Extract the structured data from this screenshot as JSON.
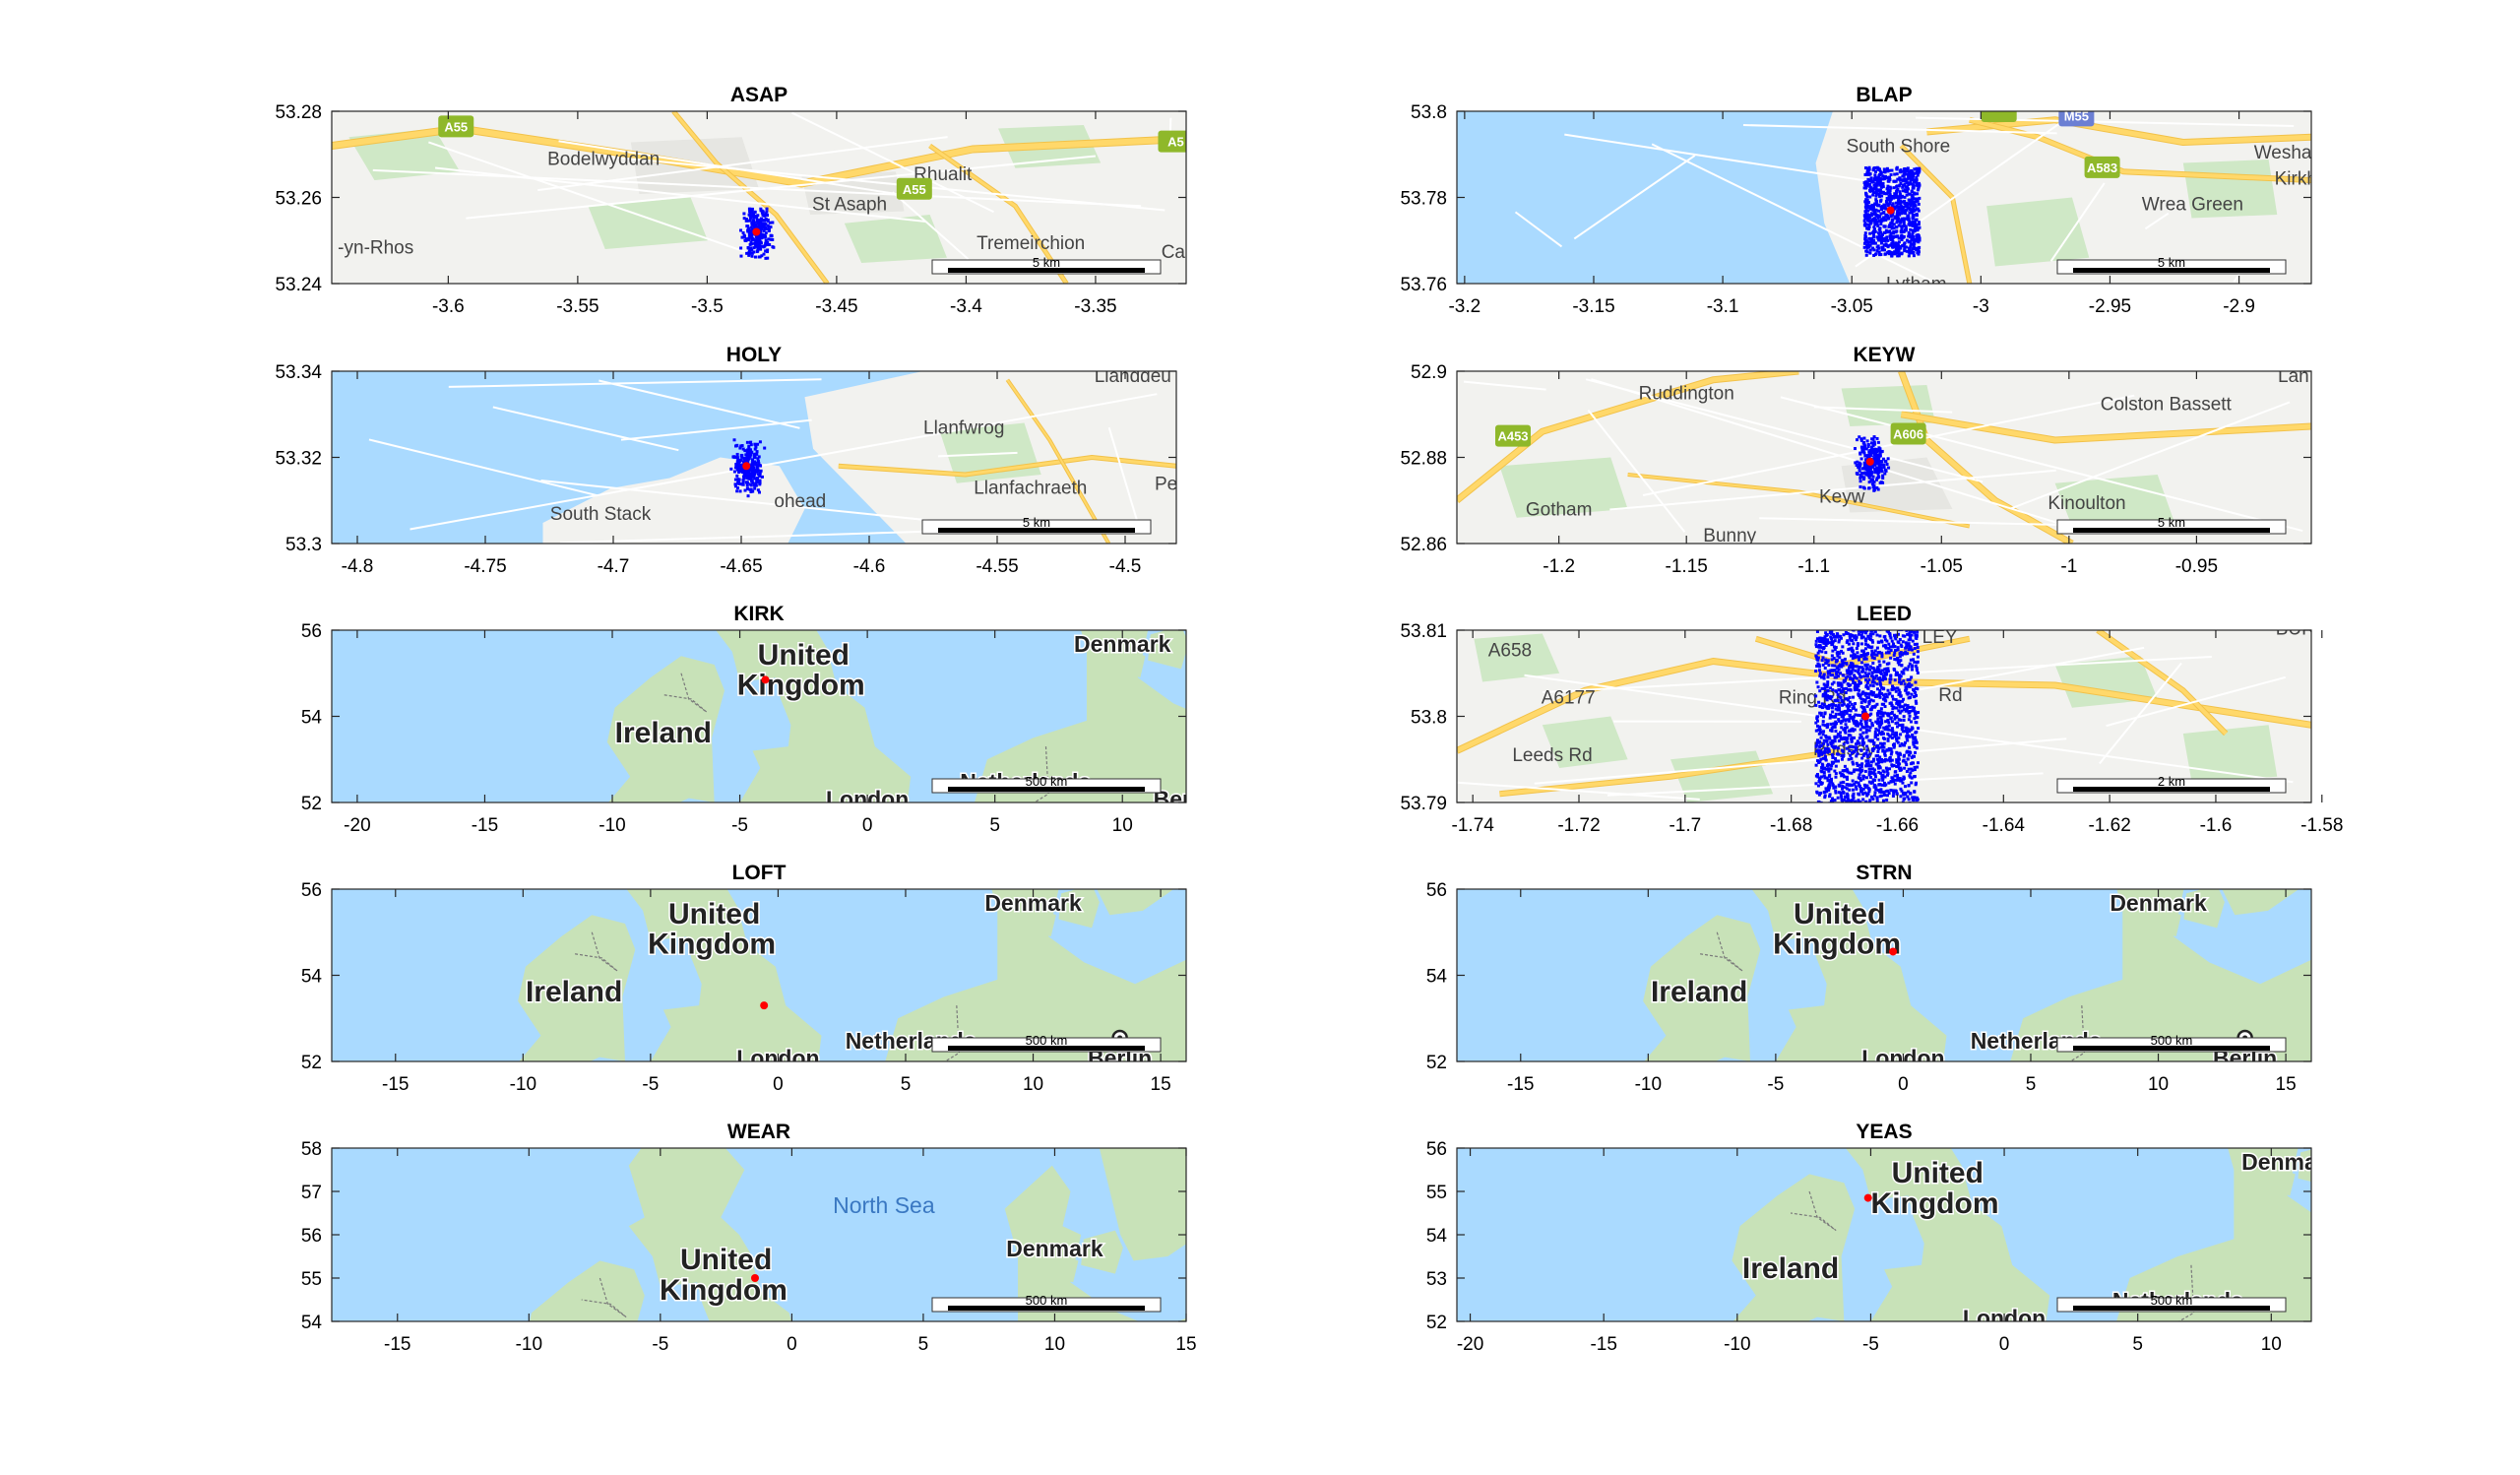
{
  "colors": {
    "water": "#aadaff",
    "land": "#f2f2ef",
    "green": "#cfe8c6",
    "landGreen": "#c8e2b8",
    "road": "#ffd86a",
    "roadEdge": "#f2c24a",
    "badge": "#8fb82a",
    "points": "#0000ff",
    "station": "#ff0000",
    "axis": "#262626"
  },
  "panels": [
    {
      "id": "asap",
      "title": "ASAP",
      "theme": "town",
      "xlim": [
        -3.645,
        -3.315
      ],
      "ylim": [
        53.24,
        53.28
      ],
      "xticks": [
        -3.6,
        -3.55,
        -3.5,
        -3.45,
        -3.4,
        -3.35
      ],
      "yticks": [
        53.24,
        53.26,
        53.28
      ],
      "xtick_labels": [
        "-3.6",
        "-3.55",
        "-3.5",
        "-3.45",
        "-3.4",
        "-3.35"
      ],
      "ytick_labels": [
        "53.24",
        "53.26",
        "53.28"
      ],
      "scale": "5 km",
      "station": [
        -3.481,
        53.252
      ],
      "places": [
        {
          "text": "Bodelwyddan",
          "lon": -3.54,
          "lat": 53.2675
        },
        {
          "text": "Rhualit",
          "lon": -3.409,
          "lat": 53.264
        },
        {
          "text": "St Asaph",
          "lon": -3.445,
          "lat": 53.257
        },
        {
          "text": "-yn-Rhos",
          "lon": -3.628,
          "lat": 53.247
        },
        {
          "text": "Tremeirchion",
          "lon": -3.375,
          "lat": 53.248
        },
        {
          "text": "Ca",
          "lon": -3.32,
          "lat": 53.246
        }
      ],
      "shields": [
        {
          "text": "A55",
          "lon": -3.597,
          "lat": 53.2765
        },
        {
          "text": "A55",
          "lon": -3.42,
          "lat": 53.262
        },
        {
          "text": "A5",
          "lon": -3.319,
          "lat": 53.273
        }
      ]
    },
    {
      "id": "blap",
      "title": "BLAP",
      "theme": "coast",
      "xlim": [
        -3.203,
        -2.872
      ],
      "ylim": [
        53.76,
        53.8
      ],
      "xticks": [
        -3.2,
        -3.15,
        -3.1,
        -3.05,
        -3,
        -2.95,
        -2.9
      ],
      "yticks": [
        53.76,
        53.78,
        53.8
      ],
      "xtick_labels": [
        "-3.2",
        "-3.15",
        "-3.1",
        "-3.05",
        "-3",
        "-2.95",
        "-2.9"
      ],
      "ytick_labels": [
        "53.76",
        "53.78",
        "53.8"
      ],
      "scale": "5 km",
      "station": [
        -3.035,
        53.777
      ],
      "places": [
        {
          "text": "South Shore",
          "lon": -3.032,
          "lat": 53.7905
        },
        {
          "text": "Wesham",
          "lon": -2.88,
          "lat": 53.789
        },
        {
          "text": "Kirkh",
          "lon": -2.878,
          "lat": 53.783
        },
        {
          "text": "Wrea Green",
          "lon": -2.918,
          "lat": 53.777
        },
        {
          "text": "Lytham",
          "lon": -3.025,
          "lat": 53.7585
        }
      ],
      "shields": [
        {
          "text": "M55",
          "lon": -2.963,
          "lat": 53.799
        },
        {
          "text": "A583",
          "lon": -2.953,
          "lat": 53.787
        },
        {
          "text": "",
          "lon": -2.993,
          "lat": 53.8
        }
      ]
    },
    {
      "id": "holy",
      "title": "HOLY",
      "theme": "island",
      "xlim": [
        -4.81,
        -4.48
      ],
      "ylim": [
        53.3,
        53.34
      ],
      "xticks": [
        -4.8,
        -4.75,
        -4.7,
        -4.65,
        -4.6,
        -4.55,
        -4.5
      ],
      "yticks": [
        53.3,
        53.32,
        53.34
      ],
      "xtick_labels": [
        "-4.8",
        "-4.75",
        "-4.7",
        "-4.65",
        "-4.6",
        "-4.55",
        "-4.5"
      ],
      "ytick_labels": [
        "53.3",
        "53.32",
        "53.34"
      ],
      "scale": "5 km",
      "station": [
        -4.648,
        53.318
      ],
      "places": [
        {
          "text": "Llanfwrog",
          "lon": -4.563,
          "lat": 53.3255
        },
        {
          "text": "Llanfachraeth",
          "lon": -4.537,
          "lat": 53.3115
        },
        {
          "text": "South Stack",
          "lon": -4.705,
          "lat": 53.3055
        },
        {
          "text": "ohead",
          "lon": -4.627,
          "lat": 53.3085
        },
        {
          "text": "Llanddeu",
          "lon": -4.497,
          "lat": 53.3375
        },
        {
          "text": "Pe",
          "lon": -4.484,
          "lat": 53.3125
        }
      ],
      "shields": []
    },
    {
      "id": "keyw",
      "title": "KEYW",
      "theme": "town2",
      "xlim": [
        -1.24,
        -0.905
      ],
      "ylim": [
        52.86,
        52.9
      ],
      "xticks": [
        -1.2,
        -1.15,
        -1.1,
        -1.05,
        -1,
        -0.95
      ],
      "yticks": [
        52.86,
        52.88,
        52.9
      ],
      "xtick_labels": [
        "-1.2",
        "-1.15",
        "-1.1",
        "-1.05",
        "-1",
        "-0.95"
      ],
      "ytick_labels": [
        "52.86",
        "52.88",
        "52.9"
      ],
      "scale": "5 km",
      "station": [
        -1.078,
        52.879
      ],
      "places": [
        {
          "text": "Ruddington",
          "lon": -1.15,
          "lat": 52.8935
        },
        {
          "text": "Colston Bassett",
          "lon": -0.962,
          "lat": 52.891
        },
        {
          "text": "Lan",
          "lon": -0.912,
          "lat": 52.8975
        },
        {
          "text": "Gotham",
          "lon": -1.2,
          "lat": 52.8665
        },
        {
          "text": "Keyw",
          "lon": -1.089,
          "lat": 52.8695
        },
        {
          "text": "Kinoulton",
          "lon": -0.993,
          "lat": 52.868
        },
        {
          "text": "Bunny",
          "lon": -1.133,
          "lat": 52.8605
        }
      ],
      "shields": [
        {
          "text": "A453",
          "lon": -1.218,
          "lat": 52.885
        },
        {
          "text": "A606",
          "lon": -1.063,
          "lat": 52.8855
        }
      ]
    },
    {
      "id": "kirk",
      "title": "KIRK",
      "theme": "uk",
      "xlim": [
        -21.0,
        12.5
      ],
      "ylim": [
        52,
        56
      ],
      "xticks": [
        -20,
        -15,
        -10,
        -5,
        0,
        5,
        10
      ],
      "yticks": [
        52,
        54,
        56
      ],
      "xtick_labels": [
        "-20",
        "-15",
        "-10",
        "-5",
        "0",
        "5",
        "10"
      ],
      "ytick_labels": [
        "52",
        "54",
        "56"
      ],
      "scale": "500 km",
      "station": [
        -4.0,
        54.85
      ],
      "places": [
        {
          "text": "United",
          "lon": -2.5,
          "lat": 55.2,
          "big": true
        },
        {
          "text": "Kingdom",
          "lon": -2.6,
          "lat": 54.5,
          "big": true
        },
        {
          "text": "Ireland",
          "lon": -8.0,
          "lat": 53.4,
          "big": true
        },
        {
          "text": "Denmark",
          "lon": 10.0,
          "lat": 55.5
        },
        {
          "text": "Netherlands",
          "lon": 6.2,
          "lat": 52.3
        },
        {
          "text": "London",
          "lon": 0.0,
          "lat": 51.9
        },
        {
          "text": "Berli",
          "lon": 12.2,
          "lat": 51.9
        }
      ],
      "shields": []
    },
    {
      "id": "leed",
      "title": "LEED",
      "theme": "town3",
      "xlim": [
        -1.743,
        -1.582
      ],
      "ylim": [
        53.79,
        53.81
      ],
      "xticks": [
        -1.74,
        -1.72,
        -1.7,
        -1.68,
        -1.66,
        -1.64,
        -1.62,
        -1.6,
        -1.58
      ],
      "yticks": [
        53.79,
        53.8,
        53.81
      ],
      "xtick_labels": [
        "-1.74",
        "-1.72",
        "-1.7",
        "-1.68",
        "-1.66",
        "-1.64",
        "-1.62",
        "-1.6",
        "-1.58"
      ],
      "ytick_labels": [
        "53.79",
        "53.8",
        "53.81"
      ],
      "scale": "2 km",
      "station": [
        -1.666,
        53.8
      ],
      "places": [
        {
          "text": "Pudsey",
          "lon": -1.67,
          "lat": 53.7955
        },
        {
          "text": "Leeds Rd",
          "lon": -1.725,
          "lat": 53.7948
        },
        {
          "text": "Ring Rd",
          "lon": -1.676,
          "lat": 53.8015
        },
        {
          "text": "Rd",
          "lon": -1.65,
          "lat": 53.8018
        },
        {
          "text": "A658",
          "lon": -1.733,
          "lat": 53.807
        },
        {
          "text": "A6177",
          "lon": -1.722,
          "lat": 53.8015
        },
        {
          "text": "LEY",
          "lon": -1.652,
          "lat": 53.8085
        },
        {
          "text": "BUR",
          "lon": -1.585,
          "lat": 53.8095
        }
      ],
      "shields": []
    },
    {
      "id": "loft",
      "title": "LOFT",
      "theme": "uk",
      "xlim": [
        -17.5,
        16.0
      ],
      "ylim": [
        52,
        56
      ],
      "xticks": [
        -15,
        -10,
        -5,
        0,
        5,
        10,
        15
      ],
      "yticks": [
        52,
        54,
        56
      ],
      "xtick_labels": [
        "-15",
        "-10",
        "-5",
        "0",
        "5",
        "10",
        "15"
      ],
      "ytick_labels": [
        "52",
        "54",
        "56"
      ],
      "scale": "500 km",
      "station": [
        -0.55,
        53.3
      ],
      "places": [
        {
          "text": "United",
          "lon": -2.5,
          "lat": 55.2,
          "big": true
        },
        {
          "text": "Kingdom",
          "lon": -2.6,
          "lat": 54.5,
          "big": true
        },
        {
          "text": "Ireland",
          "lon": -8.0,
          "lat": 53.4,
          "big": true
        },
        {
          "text": "Denmark",
          "lon": 10.0,
          "lat": 55.5
        },
        {
          "text": "Netherlands",
          "lon": 5.2,
          "lat": 52.3
        },
        {
          "text": "London",
          "lon": 0.0,
          "lat": 51.9
        },
        {
          "text": "Berlin",
          "lon": 13.4,
          "lat": 51.9
        }
      ],
      "capital": [
        13.4,
        52.55
      ],
      "shields": []
    },
    {
      "id": "strn",
      "title": "STRN",
      "theme": "uk",
      "xlim": [
        -17.5,
        16.0
      ],
      "ylim": [
        52,
        56
      ],
      "xticks": [
        -15,
        -10,
        -5,
        0,
        5,
        10,
        15
      ],
      "yticks": [
        52,
        54,
        56
      ],
      "xtick_labels": [
        "-15",
        "-10",
        "-5",
        "0",
        "5",
        "10",
        "15"
      ],
      "ytick_labels": [
        "52",
        "54",
        "56"
      ],
      "scale": "500 km",
      "station": [
        -0.4,
        54.55
      ],
      "places": [
        {
          "text": "United",
          "lon": -2.5,
          "lat": 55.2,
          "big": true
        },
        {
          "text": "Kingdom",
          "lon": -2.6,
          "lat": 54.5,
          "big": true
        },
        {
          "text": "Ireland",
          "lon": -8.0,
          "lat": 53.4,
          "big": true
        },
        {
          "text": "Denmark",
          "lon": 10.0,
          "lat": 55.5
        },
        {
          "text": "Netherlands",
          "lon": 5.2,
          "lat": 52.3
        },
        {
          "text": "London",
          "lon": 0.0,
          "lat": 51.9
        },
        {
          "text": "Berlin",
          "lon": 13.4,
          "lat": 51.9
        }
      ],
      "capital": [
        13.4,
        52.55
      ],
      "shields": []
    },
    {
      "id": "wear",
      "title": "WEAR",
      "theme": "uk",
      "xlim": [
        -17.5,
        15.0
      ],
      "ylim": [
        54,
        58
      ],
      "xticks": [
        -15,
        -10,
        -5,
        0,
        5,
        10,
        15
      ],
      "yticks": [
        54,
        55,
        56,
        57,
        58
      ],
      "xtick_labels": [
        "-15",
        "-10",
        "-5",
        "0",
        "5",
        "10",
        "15"
      ],
      "ytick_labels": [
        "54",
        "55",
        "56",
        "57",
        "58"
      ],
      "scale": "500 km",
      "station": [
        -1.4,
        55.0
      ],
      "places": [
        {
          "text": "North Sea",
          "lon": 3.5,
          "lat": 56.5
        },
        {
          "text": "Denmark",
          "lon": 10.0,
          "lat": 55.5
        },
        {
          "text": "United",
          "lon": -2.5,
          "lat": 55.2,
          "big": true
        },
        {
          "text": "Kingdom",
          "lon": -2.6,
          "lat": 54.5,
          "big": true
        }
      ],
      "shields": []
    },
    {
      "id": "yeas",
      "title": "YEAS",
      "theme": "uk",
      "xlim": [
        -20.5,
        11.5
      ],
      "ylim": [
        52,
        56
      ],
      "xticks": [
        -20,
        -15,
        -10,
        -5,
        0,
        5,
        10
      ],
      "yticks": [
        52,
        53,
        54,
        55,
        56
      ],
      "xtick_labels": [
        "-20",
        "-15",
        "-10",
        "-5",
        "0",
        "5",
        "10"
      ],
      "ytick_labels": [
        "52",
        "53",
        "54",
        "55",
        "56"
      ],
      "scale": "500 km",
      "station": [
        -5.1,
        54.85
      ],
      "places": [
        {
          "text": "United",
          "lon": -2.5,
          "lat": 55.2,
          "big": true
        },
        {
          "text": "Kingdom",
          "lon": -2.6,
          "lat": 54.5,
          "big": true
        },
        {
          "text": "Ireland",
          "lon": -8.0,
          "lat": 53.0,
          "big": true
        },
        {
          "text": "Denma",
          "lon": 10.3,
          "lat": 55.5
        },
        {
          "text": "Netherlands",
          "lon": 6.5,
          "lat": 52.3
        },
        {
          "text": "London",
          "lon": 0.0,
          "lat": 51.9
        }
      ],
      "shields": []
    }
  ]
}
